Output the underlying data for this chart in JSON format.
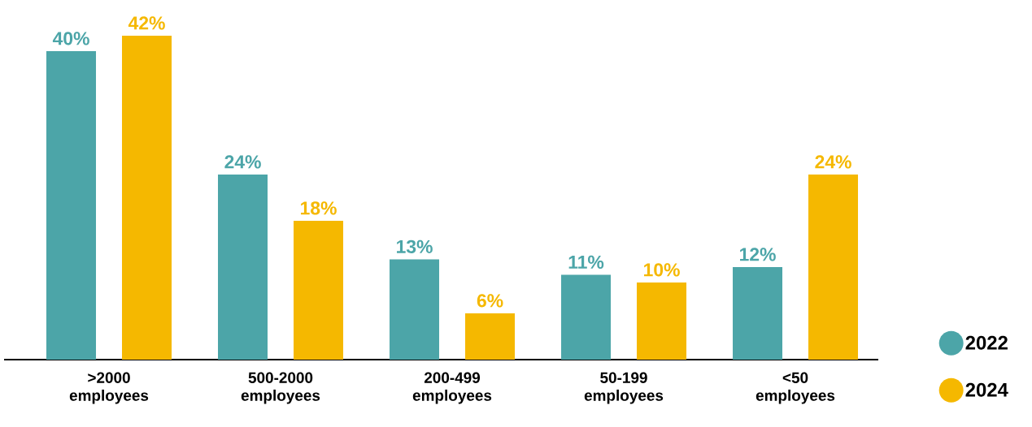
{
  "chart_data": {
    "type": "bar",
    "categories": [
      ">2000 employees",
      "500-2000 employees",
      "200-499 employees",
      "50-199 employees",
      "<50 employees"
    ],
    "series": [
      {
        "name": "2022",
        "color": "#4ca5a8",
        "values": [
          40,
          24,
          13,
          11,
          12
        ],
        "value_labels": [
          "40%",
          "24%",
          "13%",
          "11%",
          "12%"
        ]
      },
      {
        "name": "2024",
        "color": "#f5b800",
        "values": [
          42,
          18,
          6,
          10,
          24
        ],
        "value_labels": [
          "42%",
          "18%",
          "6%",
          "10%",
          "24%"
        ]
      }
    ],
    "legend": "right",
    "marker": "circle"
  }
}
